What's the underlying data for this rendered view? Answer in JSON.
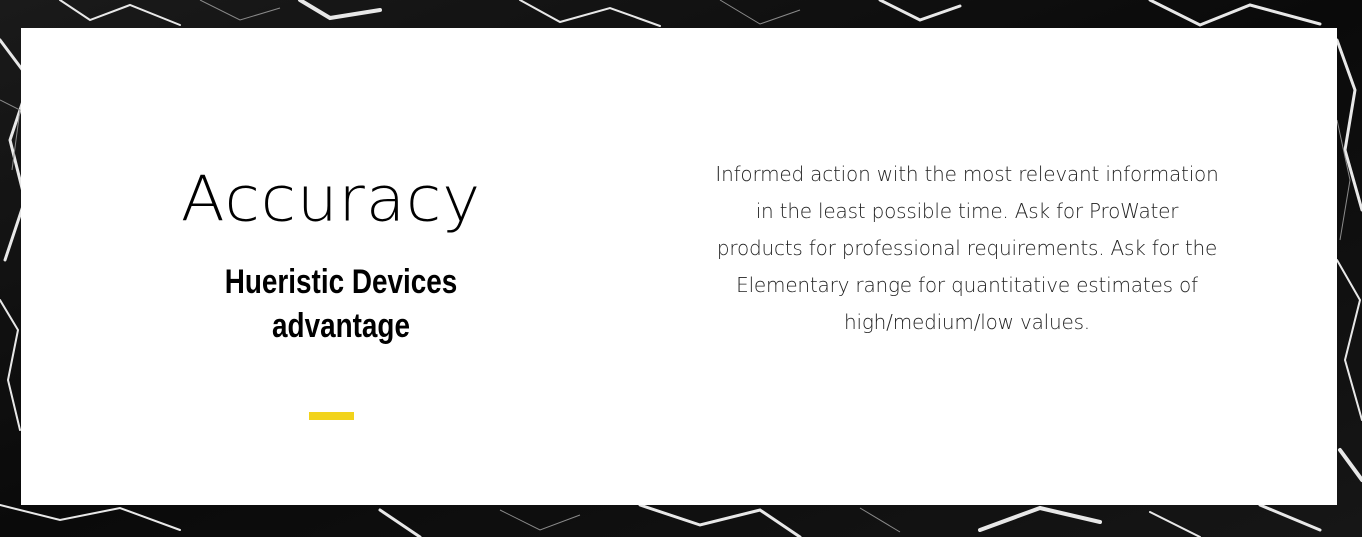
{
  "section": {
    "title": "Accuracy",
    "subtitle": "Hueristic Devices advantage",
    "description": "Informed action with the most relevant information in the least possible time. Ask for ProWater products for professional requirements. Ask for the Elementary range for quantitative estimates of high/medium/low values."
  },
  "colors": {
    "accent": "#f2d31b",
    "card_background": "#ffffff",
    "page_background": "#0d0d0d"
  }
}
